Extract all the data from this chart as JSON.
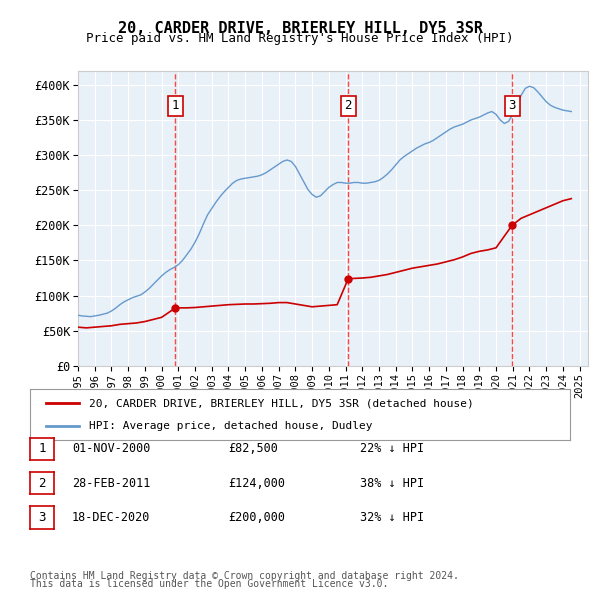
{
  "title": "20, CARDER DRIVE, BRIERLEY HILL, DY5 3SR",
  "subtitle": "Price paid vs. HM Land Registry's House Price Index (HPI)",
  "ylabel_ticks": [
    "£0",
    "£50K",
    "£100K",
    "£150K",
    "£200K",
    "£250K",
    "£300K",
    "£350K",
    "£400K"
  ],
  "ytick_values": [
    0,
    50000,
    100000,
    150000,
    200000,
    250000,
    300000,
    350000,
    400000
  ],
  "ylim": [
    0,
    420000
  ],
  "xlim_start": 1995.0,
  "xlim_end": 2025.5,
  "bg_color": "#ddeeff",
  "plot_bg": "#e8f0f8",
  "red_line_color": "#cc0000",
  "blue_line_color": "#6699cc",
  "sale_marker_color": "#cc0000",
  "vline_color": "#ff4444",
  "transaction_label_bg": "#ffffff",
  "transaction_label_border": "#cc0000",
  "legend_entry1": "20, CARDER DRIVE, BRIERLEY HILL, DY5 3SR (detached house)",
  "legend_entry2": "HPI: Average price, detached house, Dudley",
  "transactions": [
    {
      "num": 1,
      "date": "01-NOV-2000",
      "price": 82500,
      "pct": "22%",
      "dir": "↓",
      "year": 2000.83
    },
    {
      "num": 2,
      "date": "28-FEB-2011",
      "price": 124000,
      "pct": "38%",
      "dir": "↓",
      "year": 2011.16
    },
    {
      "num": 3,
      "date": "18-DEC-2020",
      "price": 200000,
      "pct": "32%",
      "dir": "↓",
      "year": 2020.96
    }
  ],
  "footer1": "Contains HM Land Registry data © Crown copyright and database right 2024.",
  "footer2": "This data is licensed under the Open Government Licence v3.0.",
  "hpi_data": {
    "years": [
      1995.0,
      1995.25,
      1995.5,
      1995.75,
      1996.0,
      1996.25,
      1996.5,
      1996.75,
      1997.0,
      1997.25,
      1997.5,
      1997.75,
      1998.0,
      1998.25,
      1998.5,
      1998.75,
      1999.0,
      1999.25,
      1999.5,
      1999.75,
      2000.0,
      2000.25,
      2000.5,
      2000.75,
      2001.0,
      2001.25,
      2001.5,
      2001.75,
      2002.0,
      2002.25,
      2002.5,
      2002.75,
      2003.0,
      2003.25,
      2003.5,
      2003.75,
      2004.0,
      2004.25,
      2004.5,
      2004.75,
      2005.0,
      2005.25,
      2005.5,
      2005.75,
      2006.0,
      2006.25,
      2006.5,
      2006.75,
      2007.0,
      2007.25,
      2007.5,
      2007.75,
      2008.0,
      2008.25,
      2008.5,
      2008.75,
      2009.0,
      2009.25,
      2009.5,
      2009.75,
      2010.0,
      2010.25,
      2010.5,
      2010.75,
      2011.0,
      2011.25,
      2011.5,
      2011.75,
      2012.0,
      2012.25,
      2012.5,
      2012.75,
      2013.0,
      2013.25,
      2013.5,
      2013.75,
      2014.0,
      2014.25,
      2014.5,
      2014.75,
      2015.0,
      2015.25,
      2015.5,
      2015.75,
      2016.0,
      2016.25,
      2016.5,
      2016.75,
      2017.0,
      2017.25,
      2017.5,
      2017.75,
      2018.0,
      2018.25,
      2018.5,
      2018.75,
      2019.0,
      2019.25,
      2019.5,
      2019.75,
      2020.0,
      2020.25,
      2020.5,
      2020.75,
      2021.0,
      2021.25,
      2021.5,
      2021.75,
      2022.0,
      2022.25,
      2022.5,
      2022.75,
      2023.0,
      2023.25,
      2023.5,
      2023.75,
      2024.0,
      2024.25,
      2024.5
    ],
    "values": [
      72000,
      71000,
      70500,
      70000,
      71000,
      72000,
      73500,
      75000,
      78000,
      82000,
      87000,
      91000,
      94000,
      97000,
      99000,
      101000,
      105000,
      110000,
      116000,
      122000,
      128000,
      133000,
      137000,
      140000,
      144000,
      150000,
      158000,
      166000,
      176000,
      188000,
      202000,
      215000,
      224000,
      233000,
      241000,
      248000,
      254000,
      260000,
      264000,
      266000,
      267000,
      268000,
      269000,
      270000,
      272000,
      275000,
      279000,
      283000,
      287000,
      291000,
      293000,
      291000,
      284000,
      273000,
      262000,
      251000,
      244000,
      240000,
      242000,
      248000,
      254000,
      258000,
      261000,
      261000,
      260000,
      260000,
      261000,
      261000,
      260000,
      260000,
      261000,
      262000,
      264000,
      268000,
      273000,
      279000,
      286000,
      293000,
      298000,
      302000,
      306000,
      310000,
      313000,
      316000,
      318000,
      321000,
      325000,
      329000,
      333000,
      337000,
      340000,
      342000,
      344000,
      347000,
      350000,
      352000,
      354000,
      357000,
      360000,
      362000,
      358000,
      350000,
      345000,
      348000,
      358000,
      370000,
      385000,
      395000,
      398000,
      396000,
      390000,
      383000,
      376000,
      371000,
      368000,
      366000,
      364000,
      363000,
      362000
    ]
  },
  "price_paid_data": {
    "years": [
      1995.0,
      1995.5,
      1996.0,
      1996.5,
      1997.0,
      1997.5,
      1998.0,
      1998.5,
      1999.0,
      1999.5,
      2000.0,
      2000.83,
      2001.5,
      2002.0,
      2002.5,
      2003.0,
      2003.5,
      2004.0,
      2004.5,
      2005.0,
      2005.5,
      2006.0,
      2006.5,
      2007.0,
      2007.5,
      2008.0,
      2008.5,
      2009.0,
      2009.5,
      2010.0,
      2010.5,
      2011.16,
      2012.0,
      2012.5,
      2013.0,
      2013.5,
      2014.0,
      2014.5,
      2015.0,
      2015.5,
      2016.0,
      2016.5,
      2017.0,
      2017.5,
      2018.0,
      2018.5,
      2019.0,
      2019.5,
      2020.0,
      2020.96,
      2021.5,
      2022.0,
      2022.5,
      2023.0,
      2023.5,
      2024.0,
      2024.5
    ],
    "values": [
      55000,
      54000,
      55000,
      56000,
      57000,
      59000,
      60000,
      61000,
      63000,
      66000,
      69000,
      82500,
      82500,
      83000,
      84000,
      85000,
      86000,
      87000,
      87500,
      88000,
      88000,
      88500,
      89000,
      90000,
      90000,
      88000,
      86000,
      84000,
      85000,
      86000,
      87000,
      124000,
      125000,
      126000,
      128000,
      130000,
      133000,
      136000,
      139000,
      141000,
      143000,
      145000,
      148000,
      151000,
      155000,
      160000,
      163000,
      165000,
      168000,
      200000,
      210000,
      215000,
      220000,
      225000,
      230000,
      235000,
      238000
    ]
  }
}
